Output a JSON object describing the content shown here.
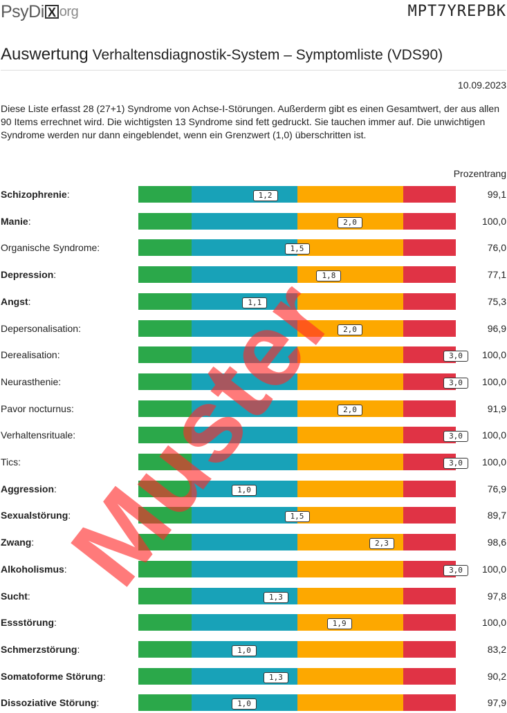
{
  "header": {
    "logo_text_a": "PsyDi",
    "logo_box": "X",
    "logo_text_b": "org",
    "code": "MPT7YREPBK"
  },
  "title": {
    "main": "Auswertung",
    "sub": "Verhaltensdiagnostik-System – Symptomliste",
    "abbrev": "(VDS90)"
  },
  "date": "10.09.2023",
  "intro": "Diese Liste erfasst 28 (27+1) Syndrome von Achse-I-Störungen. Außerderm gibt es einen Gesamtwert, der aus allen 90 Items errechnet wird. Die wichtigsten 13 Syndrome sind fett gedruckt. Sie tauchen immer auf. Die unwichtigen Syndrome werden nur dann eingeblendet, wenn ein Grenzwert (1,0) überschritten ist.",
  "column_header": "Prozentrang",
  "scale": {
    "min": 0,
    "max": 3,
    "band_colors": [
      "#2ba84a",
      "#18a2b8",
      "#fda800",
      "#e03345"
    ]
  },
  "rows": [
    {
      "label": "Schizophrenie",
      "bold": true,
      "score": 1.2,
      "score_text": "1,2",
      "percentile": "99,1"
    },
    {
      "label": "Manie",
      "bold": true,
      "score": 2.0,
      "score_text": "2,0",
      "percentile": "100,0"
    },
    {
      "label": "Organische Syndrome",
      "bold": false,
      "score": 1.5,
      "score_text": "1,5",
      "percentile": "76,0"
    },
    {
      "label": "Depression",
      "bold": true,
      "score": 1.8,
      "score_text": "1,8",
      "percentile": "77,1"
    },
    {
      "label": "Angst",
      "bold": true,
      "score": 1.1,
      "score_text": "1,1",
      "percentile": "75,3"
    },
    {
      "label": "Depersonalisation",
      "bold": false,
      "score": 2.0,
      "score_text": "2,0",
      "percentile": "96,9"
    },
    {
      "label": "Derealisation",
      "bold": false,
      "score": 3.0,
      "score_text": "3,0",
      "percentile": "100,0"
    },
    {
      "label": "Neurasthenie",
      "bold": false,
      "score": 3.0,
      "score_text": "3,0",
      "percentile": "100,0"
    },
    {
      "label": "Pavor nocturnus",
      "bold": false,
      "score": 2.0,
      "score_text": "2,0",
      "percentile": "91,9"
    },
    {
      "label": "Verhaltensrituale",
      "bold": false,
      "score": 3.0,
      "score_text": "3,0",
      "percentile": "100,0"
    },
    {
      "label": "Tics",
      "bold": false,
      "score": 3.0,
      "score_text": "3,0",
      "percentile": "100,0"
    },
    {
      "label": "Aggression",
      "bold": true,
      "score": 1.0,
      "score_text": "1,0",
      "percentile": "76,9"
    },
    {
      "label": "Sexualstörung",
      "bold": true,
      "score": 1.5,
      "score_text": "1,5",
      "percentile": "89,7"
    },
    {
      "label": "Zwang",
      "bold": true,
      "score": 2.3,
      "score_text": "2,3",
      "percentile": "98,6"
    },
    {
      "label": "Alkoholismus",
      "bold": true,
      "score": 3.0,
      "score_text": "3,0",
      "percentile": "100,0"
    },
    {
      "label": "Sucht",
      "bold": true,
      "score": 1.3,
      "score_text": "1,3",
      "percentile": "97,8"
    },
    {
      "label": "Essstörung",
      "bold": true,
      "score": 1.9,
      "score_text": "1,9",
      "percentile": "100,0"
    },
    {
      "label": "Schmerzstörung",
      "bold": true,
      "score": 1.0,
      "score_text": "1,0",
      "percentile": "83,2"
    },
    {
      "label": "Somatoforme Störung",
      "bold": true,
      "score": 1.3,
      "score_text": "1,3",
      "percentile": "90,2"
    },
    {
      "label": "Dissoziative Störung",
      "bold": true,
      "score": 1.0,
      "score_text": "1,0",
      "percentile": "97,9"
    }
  ],
  "watermark": "Muster"
}
